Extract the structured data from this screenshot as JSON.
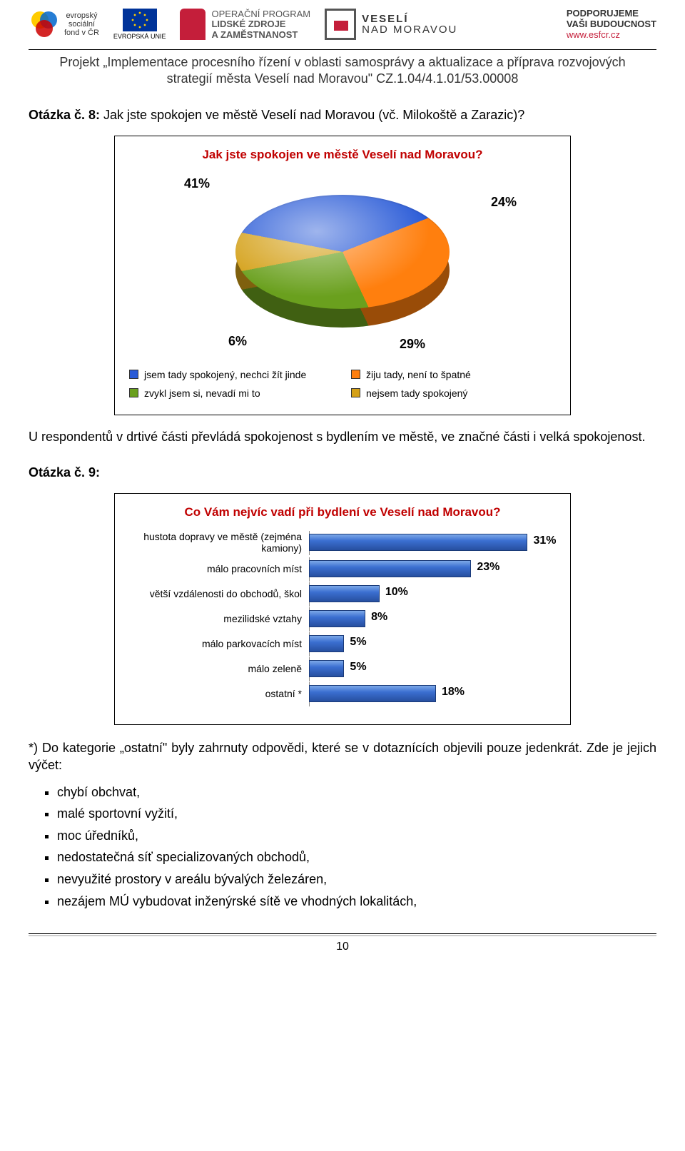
{
  "header": {
    "esf_lines": [
      "evropský",
      "sociální",
      "fond v ČR"
    ],
    "eu_label": "EVROPSKÁ UNIE",
    "op_lines": [
      "OPERAČNÍ PROGRAM",
      "LIDSKÉ ZDROJE",
      "A ZAMĚSTNANOST"
    ],
    "veseli_lines": [
      "VESELÍ",
      "NAD MORAVOU"
    ],
    "support_lines": [
      "PODPORUJEME",
      "VAŠI BUDOUCNOST"
    ],
    "support_link": "www.esfcr.cz",
    "project_line1": "Projekt „Implementace procesního řízení v oblasti samosprávy a aktualizace a příprava rozvojových",
    "project_line2": "strategií města Veselí nad Moravou\" CZ.1.04/4.1.01/53.00008"
  },
  "q8": {
    "prefix": "Otázka č. 8:",
    "text": " Jak jste spokojen ve městě Veselí nad Moravou (vč. Milokoště a Zarazic)?"
  },
  "pie": {
    "title": "Jak jste spokojen ve městě Veselí nad Moravou?",
    "slices": [
      {
        "label": "jsem tady spokojený, nechci žít jinde",
        "value": 41,
        "pct": "41%",
        "color": "#2a5bd7"
      },
      {
        "label": "žiju tady, není to špatné",
        "value": 24,
        "pct": "24%",
        "color": "#ff7f0e"
      },
      {
        "label": "zvykl jsem si, nevadí mi to",
        "value": 29,
        "pct": "29%",
        "color": "#6aa01e"
      },
      {
        "label": "nejsem tady spokojený",
        "value": 6,
        "pct": "6%",
        "color": "#d4a017"
      }
    ],
    "label_fontsize": 18,
    "legend_fontsize": 14,
    "background_color": "#ffffff"
  },
  "mid_text": "U respondentů v drtivé části převládá spokojenost s bydlením ve městě, ve značné části i velká spokojenost.",
  "q9": {
    "prefix": "Otázka č. 9:"
  },
  "bar": {
    "title": "Co Vám nejvíc vadí při bydlení ve Veselí nad Moravou?",
    "type": "bar",
    "xlim_max": 35,
    "bar_color_gradient": [
      "#7da9e8",
      "#3b6fd1",
      "#274f9f"
    ],
    "bar_border": "#1a3a78",
    "label_fontsize": 14,
    "value_fontsize": 16,
    "value_font_weight": "bold",
    "background_color": "#ffffff",
    "items": [
      {
        "label": "hustota dopravy ve městě (zejména kamiony)",
        "value": 31,
        "pct": "31%"
      },
      {
        "label": "málo pracovních míst",
        "value": 23,
        "pct": "23%"
      },
      {
        "label": "větší vzdálenosti do obchodů, škol",
        "value": 10,
        "pct": "10%"
      },
      {
        "label": "mezilidské vztahy",
        "value": 8,
        "pct": "8%"
      },
      {
        "label": "málo parkovacích míst",
        "value": 5,
        "pct": "5%"
      },
      {
        "label": "málo zeleně",
        "value": 5,
        "pct": "5%"
      },
      {
        "label": "ostatní *",
        "value": 18,
        "pct": "18%"
      }
    ]
  },
  "footnote": "*) Do kategorie „ostatní\" byly zahrnuty odpovědi, které se v dotaznících objevili pouze jedenkrát. Zde je jejich výčet:",
  "bullets": [
    "chybí obchvat,",
    "malé sportovní vyžití,",
    "moc úředníků,",
    "nedostatečná síť specializovaných obchodů,",
    "nevyužité prostory v areálu bývalých železáren,",
    "nezájem MÚ vybudovat inženýrské sítě ve vhodných lokalitách,"
  ],
  "page_number": "10"
}
